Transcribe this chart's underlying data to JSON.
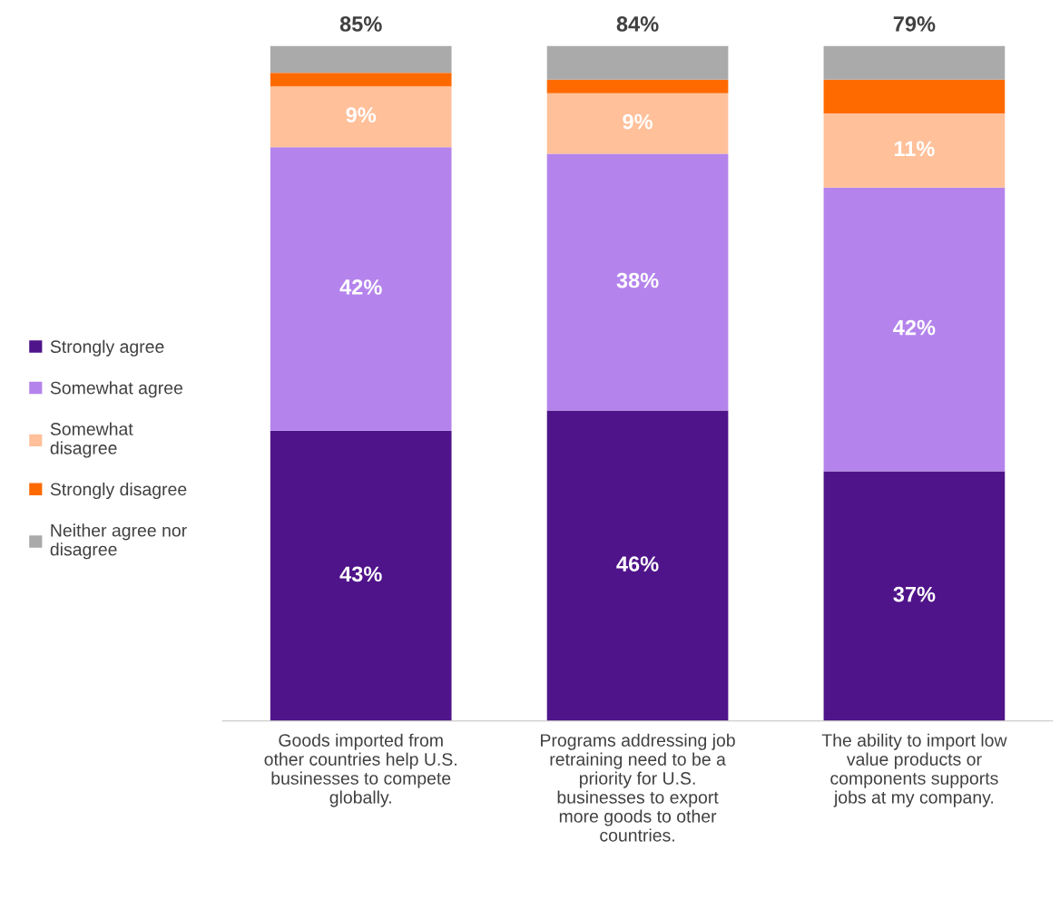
{
  "chart_data": {
    "type": "bar",
    "stacked": true,
    "categories": [
      "Goods imported from\nother countries help U.S.\nbusinesses to compete\nglobally.",
      "Programs addressing job\nretraining need to be a\npriority for U.S.\nbusinesses to export\nmore goods to other\ncountries.",
      "The ability to import low\nvalue products or\ncomponents supports\njobs at my company."
    ],
    "series": [
      {
        "name": "Strongly agree",
        "color": "#4f148a",
        "values": [
          43,
          46,
          37
        ],
        "value_labels": [
          "43%",
          "46%",
          "37%"
        ]
      },
      {
        "name": "Somewhat agree",
        "color": "#b484ec",
        "values": [
          42,
          38,
          42
        ],
        "value_labels": [
          "42%",
          "38%",
          "42%"
        ]
      },
      {
        "name": "Somewhat\ndisagree",
        "color": "#ffc09a",
        "values": [
          9,
          9,
          11
        ],
        "value_labels": [
          "9%",
          "9%",
          "11%"
        ]
      },
      {
        "name": "Strongly disagree",
        "color": "#ff6a00",
        "values": [
          2,
          2,
          5
        ],
        "value_labels": [
          null,
          null,
          null
        ]
      },
      {
        "name": "Neither agree nor\ndisagree",
        "color": "#aaaaaa",
        "values": [
          4,
          5,
          5
        ],
        "value_labels": [
          null,
          null,
          null
        ]
      }
    ],
    "annotations": [
      {
        "text": "85%",
        "x": "Goods imported from\nother countries help U.S.\nbusinesses to compete\nglobally.",
        "y": 100
      },
      {
        "text": "84%",
        "x": "Programs addressing job\nretraining need to be a\npriority for U.S.\nbusinesses to export\nmore goods to other\ncountries.",
        "y": 100
      },
      {
        "text": "79%",
        "x": "The ability to import low\nvalue products or\ncomponents supports\njobs at my company.",
        "y": 100
      }
    ],
    "ylim": [
      0,
      100
    ],
    "tick_labels": "x",
    "grid": false,
    "legend": "left"
  }
}
